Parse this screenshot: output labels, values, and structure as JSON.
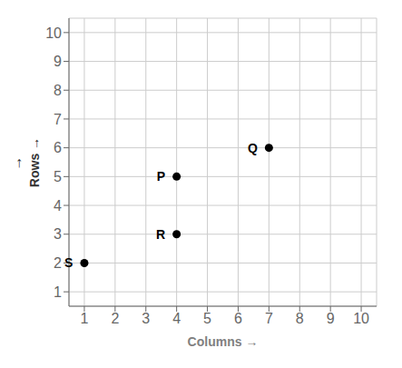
{
  "chart_data": {
    "type": "scatter",
    "xlabel": "Columns →",
    "ylabel": "Rows →",
    "annotations": [
      "↑"
    ],
    "point_labels": [
      "P",
      "Q",
      "R",
      "S"
    ],
    "x": [
      4,
      7,
      4,
      1
    ],
    "values": [
      5,
      6,
      3,
      2
    ],
    "color": "#000000",
    "xlim": [
      0.5,
      10.5
    ],
    "ylim": [
      0.5,
      10.5
    ],
    "xticks": [
      1,
      2,
      3,
      4,
      5,
      6,
      7,
      8,
      9,
      10
    ],
    "yticks": [
      1,
      2,
      3,
      4,
      5,
      6,
      7,
      8,
      9,
      10
    ],
    "grid": true
  }
}
